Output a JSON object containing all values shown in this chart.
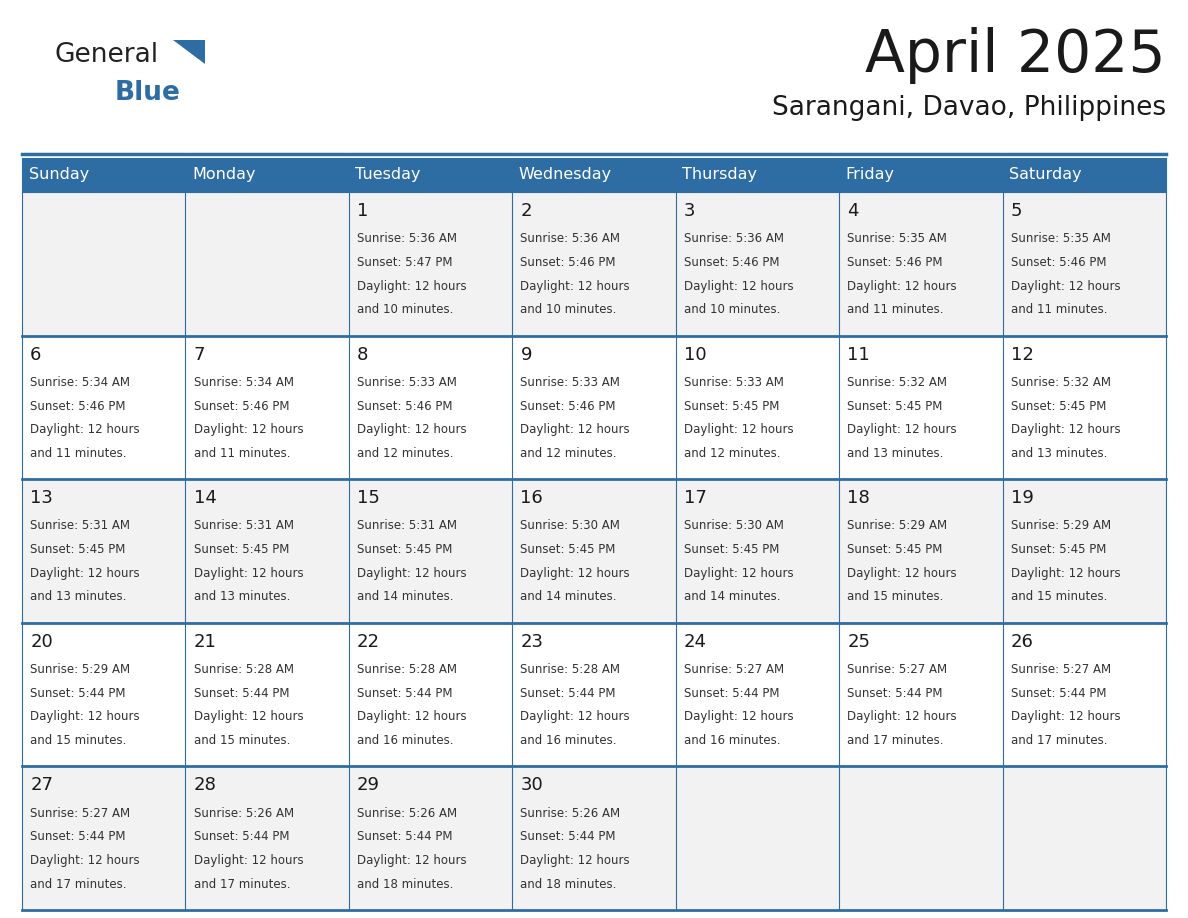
{
  "title": "April 2025",
  "subtitle": "Sarangani, Davao, Philippines",
  "header_bg": "#2E6DA4",
  "header_text": "#FFFFFF",
  "cell_bg_odd": "#F2F2F2",
  "cell_bg_even": "#FFFFFF",
  "border_color": "#2E6DA4",
  "row_border_color": "#2E6DA4",
  "text_color": "#333333",
  "day_num_color": "#1a1a1a",
  "day_headers": [
    "Sunday",
    "Monday",
    "Tuesday",
    "Wednesday",
    "Thursday",
    "Friday",
    "Saturday"
  ],
  "days": [
    {
      "day": 1,
      "col": 2,
      "row": 0,
      "sunrise": "5:36 AM",
      "sunset": "5:47 PM",
      "daylight": "12 hours",
      "daylight2": "and 10 minutes."
    },
    {
      "day": 2,
      "col": 3,
      "row": 0,
      "sunrise": "5:36 AM",
      "sunset": "5:46 PM",
      "daylight": "12 hours",
      "daylight2": "and 10 minutes."
    },
    {
      "day": 3,
      "col": 4,
      "row": 0,
      "sunrise": "5:36 AM",
      "sunset": "5:46 PM",
      "daylight": "12 hours",
      "daylight2": "and 10 minutes."
    },
    {
      "day": 4,
      "col": 5,
      "row": 0,
      "sunrise": "5:35 AM",
      "sunset": "5:46 PM",
      "daylight": "12 hours",
      "daylight2": "and 11 minutes."
    },
    {
      "day": 5,
      "col": 6,
      "row": 0,
      "sunrise": "5:35 AM",
      "sunset": "5:46 PM",
      "daylight": "12 hours",
      "daylight2": "and 11 minutes."
    },
    {
      "day": 6,
      "col": 0,
      "row": 1,
      "sunrise": "5:34 AM",
      "sunset": "5:46 PM",
      "daylight": "12 hours",
      "daylight2": "and 11 minutes."
    },
    {
      "day": 7,
      "col": 1,
      "row": 1,
      "sunrise": "5:34 AM",
      "sunset": "5:46 PM",
      "daylight": "12 hours",
      "daylight2": "and 11 minutes."
    },
    {
      "day": 8,
      "col": 2,
      "row": 1,
      "sunrise": "5:33 AM",
      "sunset": "5:46 PM",
      "daylight": "12 hours",
      "daylight2": "and 12 minutes."
    },
    {
      "day": 9,
      "col": 3,
      "row": 1,
      "sunrise": "5:33 AM",
      "sunset": "5:46 PM",
      "daylight": "12 hours",
      "daylight2": "and 12 minutes."
    },
    {
      "day": 10,
      "col": 4,
      "row": 1,
      "sunrise": "5:33 AM",
      "sunset": "5:45 PM",
      "daylight": "12 hours",
      "daylight2": "and 12 minutes."
    },
    {
      "day": 11,
      "col": 5,
      "row": 1,
      "sunrise": "5:32 AM",
      "sunset": "5:45 PM",
      "daylight": "12 hours",
      "daylight2": "and 13 minutes."
    },
    {
      "day": 12,
      "col": 6,
      "row": 1,
      "sunrise": "5:32 AM",
      "sunset": "5:45 PM",
      "daylight": "12 hours",
      "daylight2": "and 13 minutes."
    },
    {
      "day": 13,
      "col": 0,
      "row": 2,
      "sunrise": "5:31 AM",
      "sunset": "5:45 PM",
      "daylight": "12 hours",
      "daylight2": "and 13 minutes."
    },
    {
      "day": 14,
      "col": 1,
      "row": 2,
      "sunrise": "5:31 AM",
      "sunset": "5:45 PM",
      "daylight": "12 hours",
      "daylight2": "and 13 minutes."
    },
    {
      "day": 15,
      "col": 2,
      "row": 2,
      "sunrise": "5:31 AM",
      "sunset": "5:45 PM",
      "daylight": "12 hours",
      "daylight2": "and 14 minutes."
    },
    {
      "day": 16,
      "col": 3,
      "row": 2,
      "sunrise": "5:30 AM",
      "sunset": "5:45 PM",
      "daylight": "12 hours",
      "daylight2": "and 14 minutes."
    },
    {
      "day": 17,
      "col": 4,
      "row": 2,
      "sunrise": "5:30 AM",
      "sunset": "5:45 PM",
      "daylight": "12 hours",
      "daylight2": "and 14 minutes."
    },
    {
      "day": 18,
      "col": 5,
      "row": 2,
      "sunrise": "5:29 AM",
      "sunset": "5:45 PM",
      "daylight": "12 hours",
      "daylight2": "and 15 minutes."
    },
    {
      "day": 19,
      "col": 6,
      "row": 2,
      "sunrise": "5:29 AM",
      "sunset": "5:45 PM",
      "daylight": "12 hours",
      "daylight2": "and 15 minutes."
    },
    {
      "day": 20,
      "col": 0,
      "row": 3,
      "sunrise": "5:29 AM",
      "sunset": "5:44 PM",
      "daylight": "12 hours",
      "daylight2": "and 15 minutes."
    },
    {
      "day": 21,
      "col": 1,
      "row": 3,
      "sunrise": "5:28 AM",
      "sunset": "5:44 PM",
      "daylight": "12 hours",
      "daylight2": "and 15 minutes."
    },
    {
      "day": 22,
      "col": 2,
      "row": 3,
      "sunrise": "5:28 AM",
      "sunset": "5:44 PM",
      "daylight": "12 hours",
      "daylight2": "and 16 minutes."
    },
    {
      "day": 23,
      "col": 3,
      "row": 3,
      "sunrise": "5:28 AM",
      "sunset": "5:44 PM",
      "daylight": "12 hours",
      "daylight2": "and 16 minutes."
    },
    {
      "day": 24,
      "col": 4,
      "row": 3,
      "sunrise": "5:27 AM",
      "sunset": "5:44 PM",
      "daylight": "12 hours",
      "daylight2": "and 16 minutes."
    },
    {
      "day": 25,
      "col": 5,
      "row": 3,
      "sunrise": "5:27 AM",
      "sunset": "5:44 PM",
      "daylight": "12 hours",
      "daylight2": "and 17 minutes."
    },
    {
      "day": 26,
      "col": 6,
      "row": 3,
      "sunrise": "5:27 AM",
      "sunset": "5:44 PM",
      "daylight": "12 hours",
      "daylight2": "and 17 minutes."
    },
    {
      "day": 27,
      "col": 0,
      "row": 4,
      "sunrise": "5:27 AM",
      "sunset": "5:44 PM",
      "daylight": "12 hours",
      "daylight2": "and 17 minutes."
    },
    {
      "day": 28,
      "col": 1,
      "row": 4,
      "sunrise": "5:26 AM",
      "sunset": "5:44 PM",
      "daylight": "12 hours",
      "daylight2": "and 17 minutes."
    },
    {
      "day": 29,
      "col": 2,
      "row": 4,
      "sunrise": "5:26 AM",
      "sunset": "5:44 PM",
      "daylight": "12 hours",
      "daylight2": "and 18 minutes."
    },
    {
      "day": 30,
      "col": 3,
      "row": 4,
      "sunrise": "5:26 AM",
      "sunset": "5:44 PM",
      "daylight": "12 hours",
      "daylight2": "and 18 minutes."
    }
  ],
  "num_rows": 5,
  "num_cols": 7
}
